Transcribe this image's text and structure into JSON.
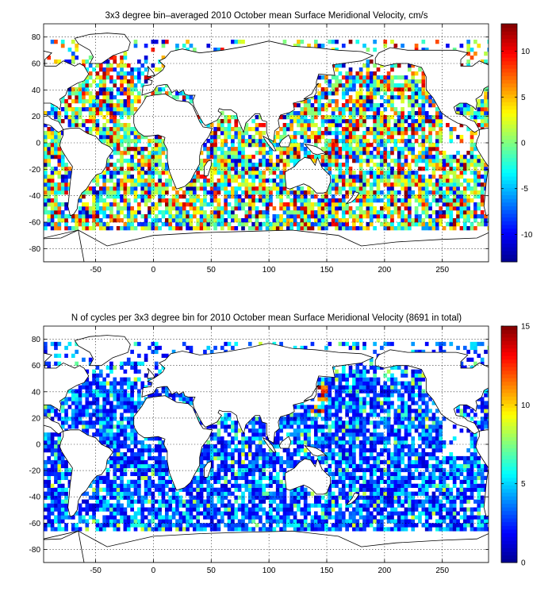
{
  "colors": {
    "jet": [
      "#00008f",
      "#0000ff",
      "#0080ff",
      "#00ffff",
      "#80ff80",
      "#ffff00",
      "#ff8000",
      "#ff0000",
      "#800000"
    ],
    "land": "#ffffff",
    "frame": "#000000"
  },
  "chart_data": [
    {
      "type": "heatmap",
      "title": "3x3 degree bin–averaged 2010 October mean Surface Meridional Velocity, cm/s",
      "xlabel": "",
      "ylabel": "",
      "xlim": [
        -95,
        290
      ],
      "ylim": [
        -90,
        90
      ],
      "x_ticks": [
        -50,
        0,
        50,
        100,
        150,
        200,
        250
      ],
      "y_ticks": [
        -80,
        -60,
        -40,
        -20,
        0,
        20,
        40,
        60,
        80
      ],
      "grid": true,
      "bin_size_deg": 3,
      "colorbar": {
        "min": -13,
        "max": 13,
        "ticks": [
          -10,
          -5,
          0,
          5,
          10
        ]
      },
      "value_range": [
        -13,
        13
      ],
      "distribution": "mixed positive/negative, roughly centered on 0"
    },
    {
      "type": "heatmap",
      "title": "N of cycles per 3x3 degree bin for 2010 October mean Surface Meridional Velocity (8691 in total)",
      "xlabel": "",
      "ylabel": "",
      "xlim": [
        -95,
        290
      ],
      "ylim": [
        -90,
        90
      ],
      "x_ticks": [
        -50,
        0,
        50,
        100,
        150,
        200,
        250
      ],
      "y_ticks": [
        -80,
        -60,
        -40,
        -20,
        0,
        20,
        40,
        60,
        80
      ],
      "grid": true,
      "bin_size_deg": 3,
      "total_cycles": 8691,
      "colorbar": {
        "min": 0,
        "max": 15,
        "ticks": [
          0,
          5,
          10,
          15
        ]
      },
      "value_range": [
        0,
        15
      ],
      "distribution": "mostly low counts (1–6), a few high bins near 30–45N in the NW Pacific"
    }
  ]
}
